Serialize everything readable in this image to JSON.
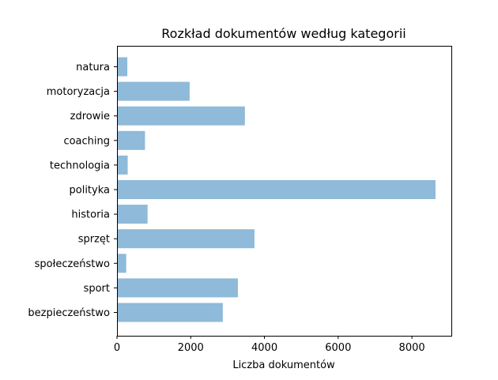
{
  "chart_data": {
    "type": "bar",
    "orientation": "horizontal",
    "title": "Rozkład dokumentów według kategorii",
    "xlabel": "Liczba dokumentów",
    "ylabel": "",
    "categories": [
      "natura",
      "motoryzacja",
      "zdrowie",
      "coaching",
      "technologia",
      "polityka",
      "historia",
      "sprzęt",
      "społeczeństwo",
      "sport",
      "bezpieczeństwo"
    ],
    "values": [
      280,
      1970,
      3470,
      760,
      290,
      8640,
      830,
      3730,
      250,
      3280,
      2870
    ],
    "xlim": [
      0,
      9070
    ],
    "xticks": [
      0,
      2000,
      4000,
      6000,
      8000
    ],
    "xtick_labels": [
      "0",
      "2000",
      "4000",
      "6000",
      "8000"
    ],
    "bar_color": "#8fbad9",
    "grid": false,
    "legend": false
  }
}
